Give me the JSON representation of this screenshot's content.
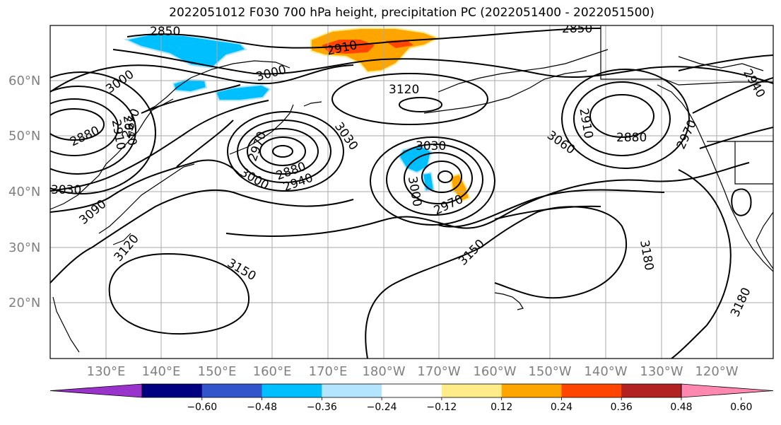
{
  "title": "2022051012 F030 700 hPa height, precipitation PC (2022051400 - 2022051500)",
  "lat_labels": [
    "60°N",
    "50°N",
    "40°N",
    "30°N",
    "20°N"
  ],
  "lon_labels": [
    "130°E",
    "140°E",
    "150°E",
    "160°E",
    "170°E",
    "180°W",
    "170°W",
    "160°W",
    "150°W",
    "140°W",
    "130°W",
    "120°W"
  ],
  "colorbar": {
    "colors": [
      "#9933cc",
      "#000080",
      "#3355cc",
      "#00bfff",
      "#b3e5ff",
      "#ffffff",
      "#ffeb88",
      "#ffa500",
      "#ff4500",
      "#b22222",
      "#ff88b0"
    ],
    "tick_labels": [
      "−0.60",
      "−0.48",
      "−0.36",
      "−0.24",
      "−0.12",
      "0.12",
      "0.24",
      "0.36",
      "0.48",
      "0.60"
    ]
  },
  "contour_labels": [
    "2850",
    "2910",
    "2880",
    "3000",
    "3000",
    "3120",
    "2910",
    "2940",
    "2970",
    "2880",
    "3030",
    "2970",
    "3000",
    "2880",
    "2940",
    "3030",
    "3000",
    "2970",
    "3060",
    "2910",
    "2880",
    "2940",
    "2970",
    "3030",
    "3090",
    "3120",
    "3150",
    "3150",
    "3180",
    "3180",
    "2880"
  ]
}
